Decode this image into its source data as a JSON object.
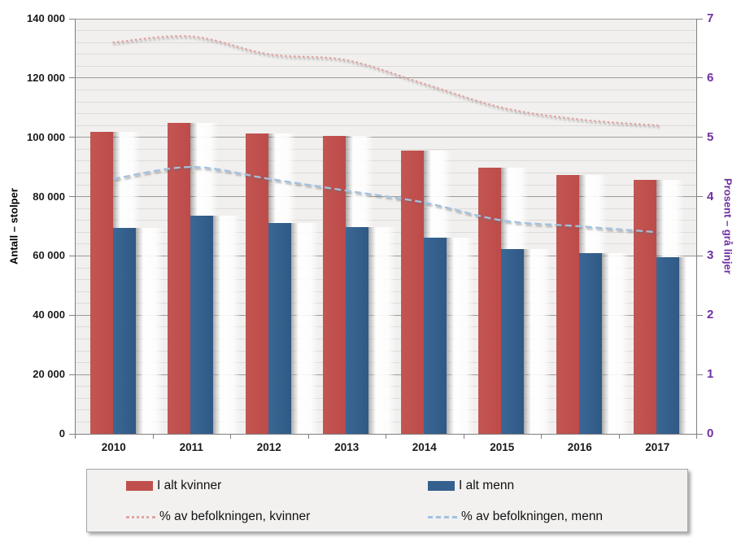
{
  "chart_data": {
    "type": "bar",
    "subtype": "combo-bar-line-dual-axis",
    "categories": [
      "2010",
      "2011",
      "2012",
      "2013",
      "2014",
      "2015",
      "2016",
      "2017"
    ],
    "series": [
      {
        "name": "I alt kvinner",
        "type": "bar",
        "axis": "left",
        "color": "#C0504D",
        "values": [
          101900,
          104800,
          101400,
          100600,
          95500,
          89800,
          87300,
          85700
        ]
      },
      {
        "name": "I alt menn",
        "type": "bar",
        "axis": "left",
        "color": "#35618F",
        "values": [
          69400,
          73500,
          71000,
          69700,
          66200,
          62400,
          60900,
          59700
        ]
      },
      {
        "name": "% av befolkningen, kvinner",
        "type": "line",
        "style": "dotted",
        "axis": "right",
        "color": "#DFA5A3",
        "values": [
          6.6,
          6.7,
          6.4,
          6.3,
          5.9,
          5.5,
          5.3,
          5.2
        ]
      },
      {
        "name": "% av befolkningen, menn",
        "type": "line",
        "style": "dashed",
        "axis": "right",
        "color": "#A3C1E0",
        "values": [
          4.3,
          4.5,
          4.3,
          4.1,
          3.9,
          3.6,
          3.5,
          3.4
        ]
      }
    ],
    "left_axis": {
      "title": "Antall – stolper",
      "min": 0,
      "max": 140000,
      "major_step": 20000,
      "minor_step": 4000,
      "tick_labels": [
        "0",
        "20 000",
        "40 000",
        "60 000",
        "80 000",
        "100 000",
        "120 000",
        "140 000"
      ]
    },
    "right_axis": {
      "title": "Prosent – grå linjer",
      "min": 0,
      "max": 7,
      "major_step": 1,
      "tick_labels": [
        "0",
        "1",
        "2",
        "3",
        "4",
        "5",
        "6",
        "7"
      ],
      "color": "#7030A0"
    },
    "grid": {
      "major": true,
      "minor": true
    },
    "legend_position": "bottom"
  }
}
